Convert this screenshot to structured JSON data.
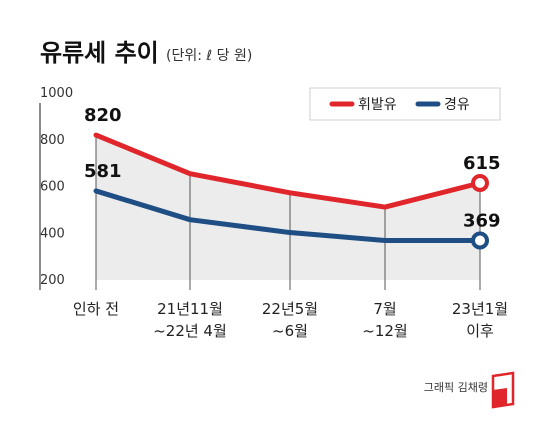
{
  "header": {
    "title": "유류세 추이",
    "subtitle": "(단위: ℓ 당 원)"
  },
  "credit": "그래픽 김채령",
  "colors": {
    "gasoline": "#e0262b",
    "diesel": "#1f4e84",
    "axis": "#666666",
    "area": "#ececec",
    "logo": "#e0262b"
  },
  "chart_data": {
    "type": "line",
    "categories": [
      [
        "인하 전"
      ],
      [
        "21년11월",
        "~22년  4월"
      ],
      [
        "22년5월",
        "~6월"
      ],
      [
        "7월",
        "~12월"
      ],
      [
        "23년1월",
        "이후"
      ]
    ],
    "series": [
      {
        "name": "휘발유",
        "values": [
          820,
          655,
          573,
          512,
          615
        ],
        "labels": [
          "820",
          "",
          "",
          "",
          "615"
        ]
      },
      {
        "name": "경유",
        "values": [
          581,
          458,
          403,
          369,
          369
        ],
        "labels": [
          "581",
          "",
          "",
          "",
          "369"
        ]
      }
    ],
    "yticks": [
      "1000",
      "800",
      "600",
      "400",
      "200"
    ],
    "ylim": [
      200,
      1000
    ],
    "legend": "top-right",
    "grid": false
  }
}
